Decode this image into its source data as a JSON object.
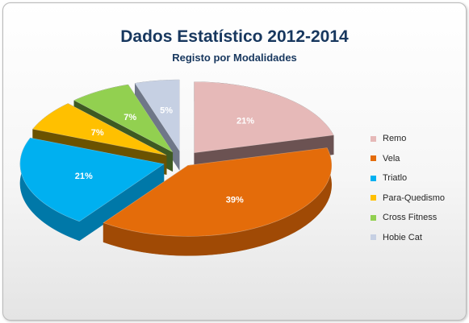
{
  "chart_data": {
    "type": "pie",
    "title": "Dados Estatístico 2012-2014",
    "subtitle": "Registo por Modalidades",
    "style": "3d-exploded",
    "legend_position": "right",
    "slices": [
      {
        "label": "Remo",
        "value": 21,
        "display": "21%",
        "color": "#e6b9b8",
        "dark": "#6b5252"
      },
      {
        "label": "Vela",
        "value": 39,
        "display": "39%",
        "color": "#e46c0a",
        "dark": "#a04a05"
      },
      {
        "label": "Triatlo",
        "value": 21,
        "display": "21%",
        "color": "#00b0f0",
        "dark": "#0078a8"
      },
      {
        "label": "Para-Quedismo",
        "value": 7,
        "display": "7%",
        "color": "#ffc000",
        "dark": "#6b5200"
      },
      {
        "label": "Cross Fitness",
        "value": 7,
        "display": "7%",
        "color": "#92d050",
        "dark": "#3e5a22"
      },
      {
        "label": "Hobie Cat",
        "value": 5,
        "display": "5%",
        "color": "#c6d0e3",
        "dark": "#6f7788"
      }
    ]
  }
}
